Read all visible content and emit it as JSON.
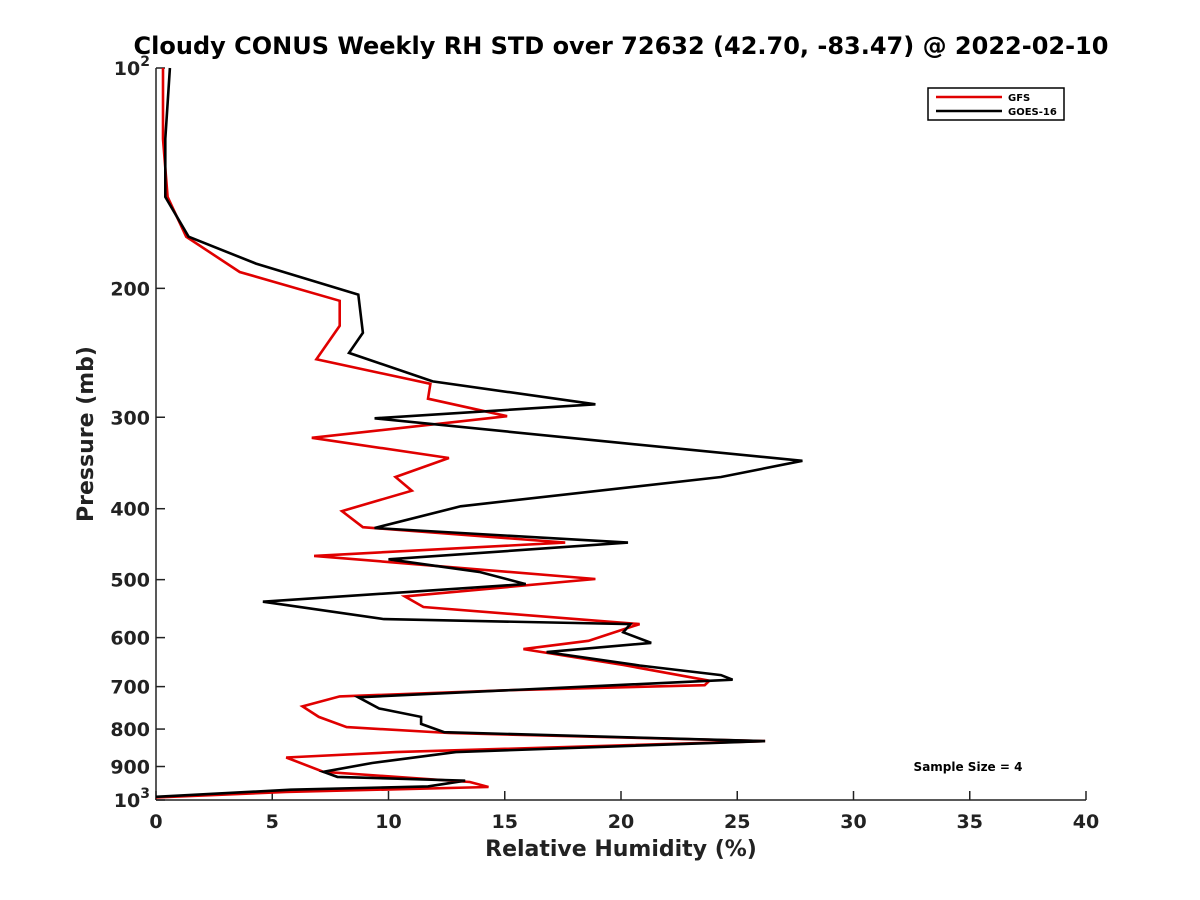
{
  "chart_data": {
    "type": "line",
    "title": "Cloudy CONUS Weekly RH STD over 72632 (42.70, -83.47) @ 2022-02-10",
    "xlabel": "Relative Humidity (%)",
    "ylabel": "Pressure (mb)",
    "xlim": [
      0,
      40
    ],
    "ylim": [
      1000,
      100
    ],
    "y_scale": "log",
    "y_reversed": true,
    "x_ticks": [
      "0",
      "5",
      "10",
      "15",
      "20",
      "25",
      "30",
      "35",
      "40"
    ],
    "y_ticks": [
      {
        "value": 100,
        "base": "10",
        "exp": "2"
      },
      {
        "value": 200,
        "label": "200"
      },
      {
        "value": 300,
        "label": "300"
      },
      {
        "value": 400,
        "label": "400"
      },
      {
        "value": 500,
        "label": "500"
      },
      {
        "value": 600,
        "label": "600"
      },
      {
        "value": 700,
        "label": "700"
      },
      {
        "value": 800,
        "label": "800"
      },
      {
        "value": 900,
        "label": "900"
      },
      {
        "value": 1000,
        "base": "10",
        "exp": "3"
      }
    ],
    "legend_position": "top-right",
    "grid": false,
    "annotation": "Sample Size = 4",
    "series": [
      {
        "name": "GFS",
        "color": "#e00000",
        "points": [
          [
            0.3,
            100
          ],
          [
            0.3,
            125
          ],
          [
            0.5,
            150
          ],
          [
            1.3,
            170
          ],
          [
            3.6,
            190
          ],
          [
            7.9,
            208
          ],
          [
            7.9,
            225
          ],
          [
            6.9,
            250
          ],
          [
            11.8,
            270
          ],
          [
            11.7,
            283
          ],
          [
            15.1,
            299
          ],
          [
            6.7,
            320
          ],
          [
            12.6,
            341
          ],
          [
            10.3,
            362
          ],
          [
            11.0,
            378
          ],
          [
            8.0,
            403
          ],
          [
            8.9,
            424
          ],
          [
            17.6,
            445
          ],
          [
            6.8,
            464
          ],
          [
            18.9,
            499
          ],
          [
            10.7,
            527
          ],
          [
            11.5,
            545
          ],
          [
            20.8,
            575
          ],
          [
            18.6,
            606
          ],
          [
            15.8,
            622
          ],
          [
            20.1,
            654
          ],
          [
            23.8,
            687
          ],
          [
            23.6,
            697
          ],
          [
            15.2,
            708
          ],
          [
            7.9,
            722
          ],
          [
            6.3,
            745
          ],
          [
            7.0,
            770
          ],
          [
            8.2,
            795
          ],
          [
            12.6,
            810
          ],
          [
            26.2,
            831
          ],
          [
            10.3,
            860
          ],
          [
            5.6,
            875
          ],
          [
            7.2,
            915
          ],
          [
            13.5,
            945
          ],
          [
            14.3,
            960
          ],
          [
            5.6,
            975
          ],
          [
            0.0,
            992
          ]
        ]
      },
      {
        "name": "GOES-16",
        "color": "#000000",
        "points": [
          [
            0.6,
            100
          ],
          [
            0.4,
            125
          ],
          [
            0.4,
            150
          ],
          [
            1.4,
            170
          ],
          [
            4.3,
            185
          ],
          [
            8.7,
            204
          ],
          [
            8.9,
            230
          ],
          [
            8.3,
            245
          ],
          [
            11.9,
            268
          ],
          [
            18.9,
            288
          ],
          [
            9.4,
            301
          ],
          [
            19.9,
            325
          ],
          [
            27.8,
            344
          ],
          [
            24.3,
            362
          ],
          [
            13.1,
            397
          ],
          [
            9.4,
            425
          ],
          [
            20.3,
            445
          ],
          [
            10.0,
            469
          ],
          [
            13.9,
            488
          ],
          [
            15.9,
            507
          ],
          [
            4.6,
            536
          ],
          [
            9.8,
            566
          ],
          [
            20.4,
            575
          ],
          [
            20.1,
            590
          ],
          [
            21.3,
            610
          ],
          [
            16.8,
            628
          ],
          [
            20.8,
            655
          ],
          [
            24.3,
            675
          ],
          [
            24.8,
            685
          ],
          [
            19.3,
            698
          ],
          [
            8.7,
            724
          ],
          [
            9.6,
            750
          ],
          [
            11.4,
            770
          ],
          [
            11.4,
            787
          ],
          [
            12.4,
            808
          ],
          [
            26.2,
            831
          ],
          [
            12.9,
            860
          ],
          [
            9.3,
            890
          ],
          [
            7.2,
            915
          ],
          [
            7.8,
            930
          ],
          [
            13.3,
            941
          ],
          [
            11.7,
            958
          ],
          [
            5.8,
            968
          ],
          [
            0.0,
            990
          ]
        ]
      }
    ]
  }
}
